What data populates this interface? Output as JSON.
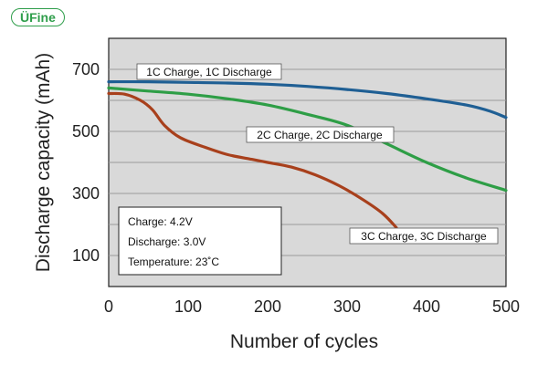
{
  "brand": {
    "logo_text": "ÜFine",
    "brand_color": "#2f9e4b"
  },
  "chart_data": {
    "type": "line",
    "title": "",
    "xlabel": "Number of cycles",
    "ylabel": "Discharge capacity (mAh)",
    "xlim": [
      0,
      500
    ],
    "ylim": [
      0,
      800
    ],
    "xticks": [
      0,
      100,
      200,
      300,
      400,
      500
    ],
    "yticks": [
      100,
      300,
      500,
      700
    ],
    "grid": true,
    "background": "#d9d9d9",
    "series": [
      {
        "name": "1C Charge, 1C Discharge",
        "color": "#1f5f94",
        "x": [
          0,
          50,
          100,
          150,
          200,
          250,
          300,
          350,
          400,
          450,
          480,
          500
        ],
        "y": [
          660,
          660,
          658,
          656,
          652,
          645,
          635,
          622,
          605,
          585,
          565,
          545
        ]
      },
      {
        "name": "2C Charge, 2C Discharge",
        "color": "#2e9e46",
        "x": [
          0,
          50,
          100,
          150,
          200,
          250,
          300,
          350,
          400,
          450,
          500
        ],
        "y": [
          640,
          630,
          620,
          605,
          585,
          555,
          520,
          460,
          400,
          350,
          310
        ]
      },
      {
        "name": "3C Charge, 3C Discharge",
        "color": "#a8401c",
        "x": [
          0,
          20,
          40,
          55,
          70,
          90,
          120,
          150,
          180,
          200,
          230,
          260,
          290,
          320,
          345,
          362
        ],
        "y": [
          622,
          620,
          600,
          570,
          520,
          480,
          450,
          425,
          410,
          400,
          385,
          360,
          325,
          280,
          235,
          190
        ]
      }
    ],
    "conditions": [
      "Charge: 4.2V",
      "Discharge: 3.0V",
      "Temperature: 23˚C"
    ]
  }
}
